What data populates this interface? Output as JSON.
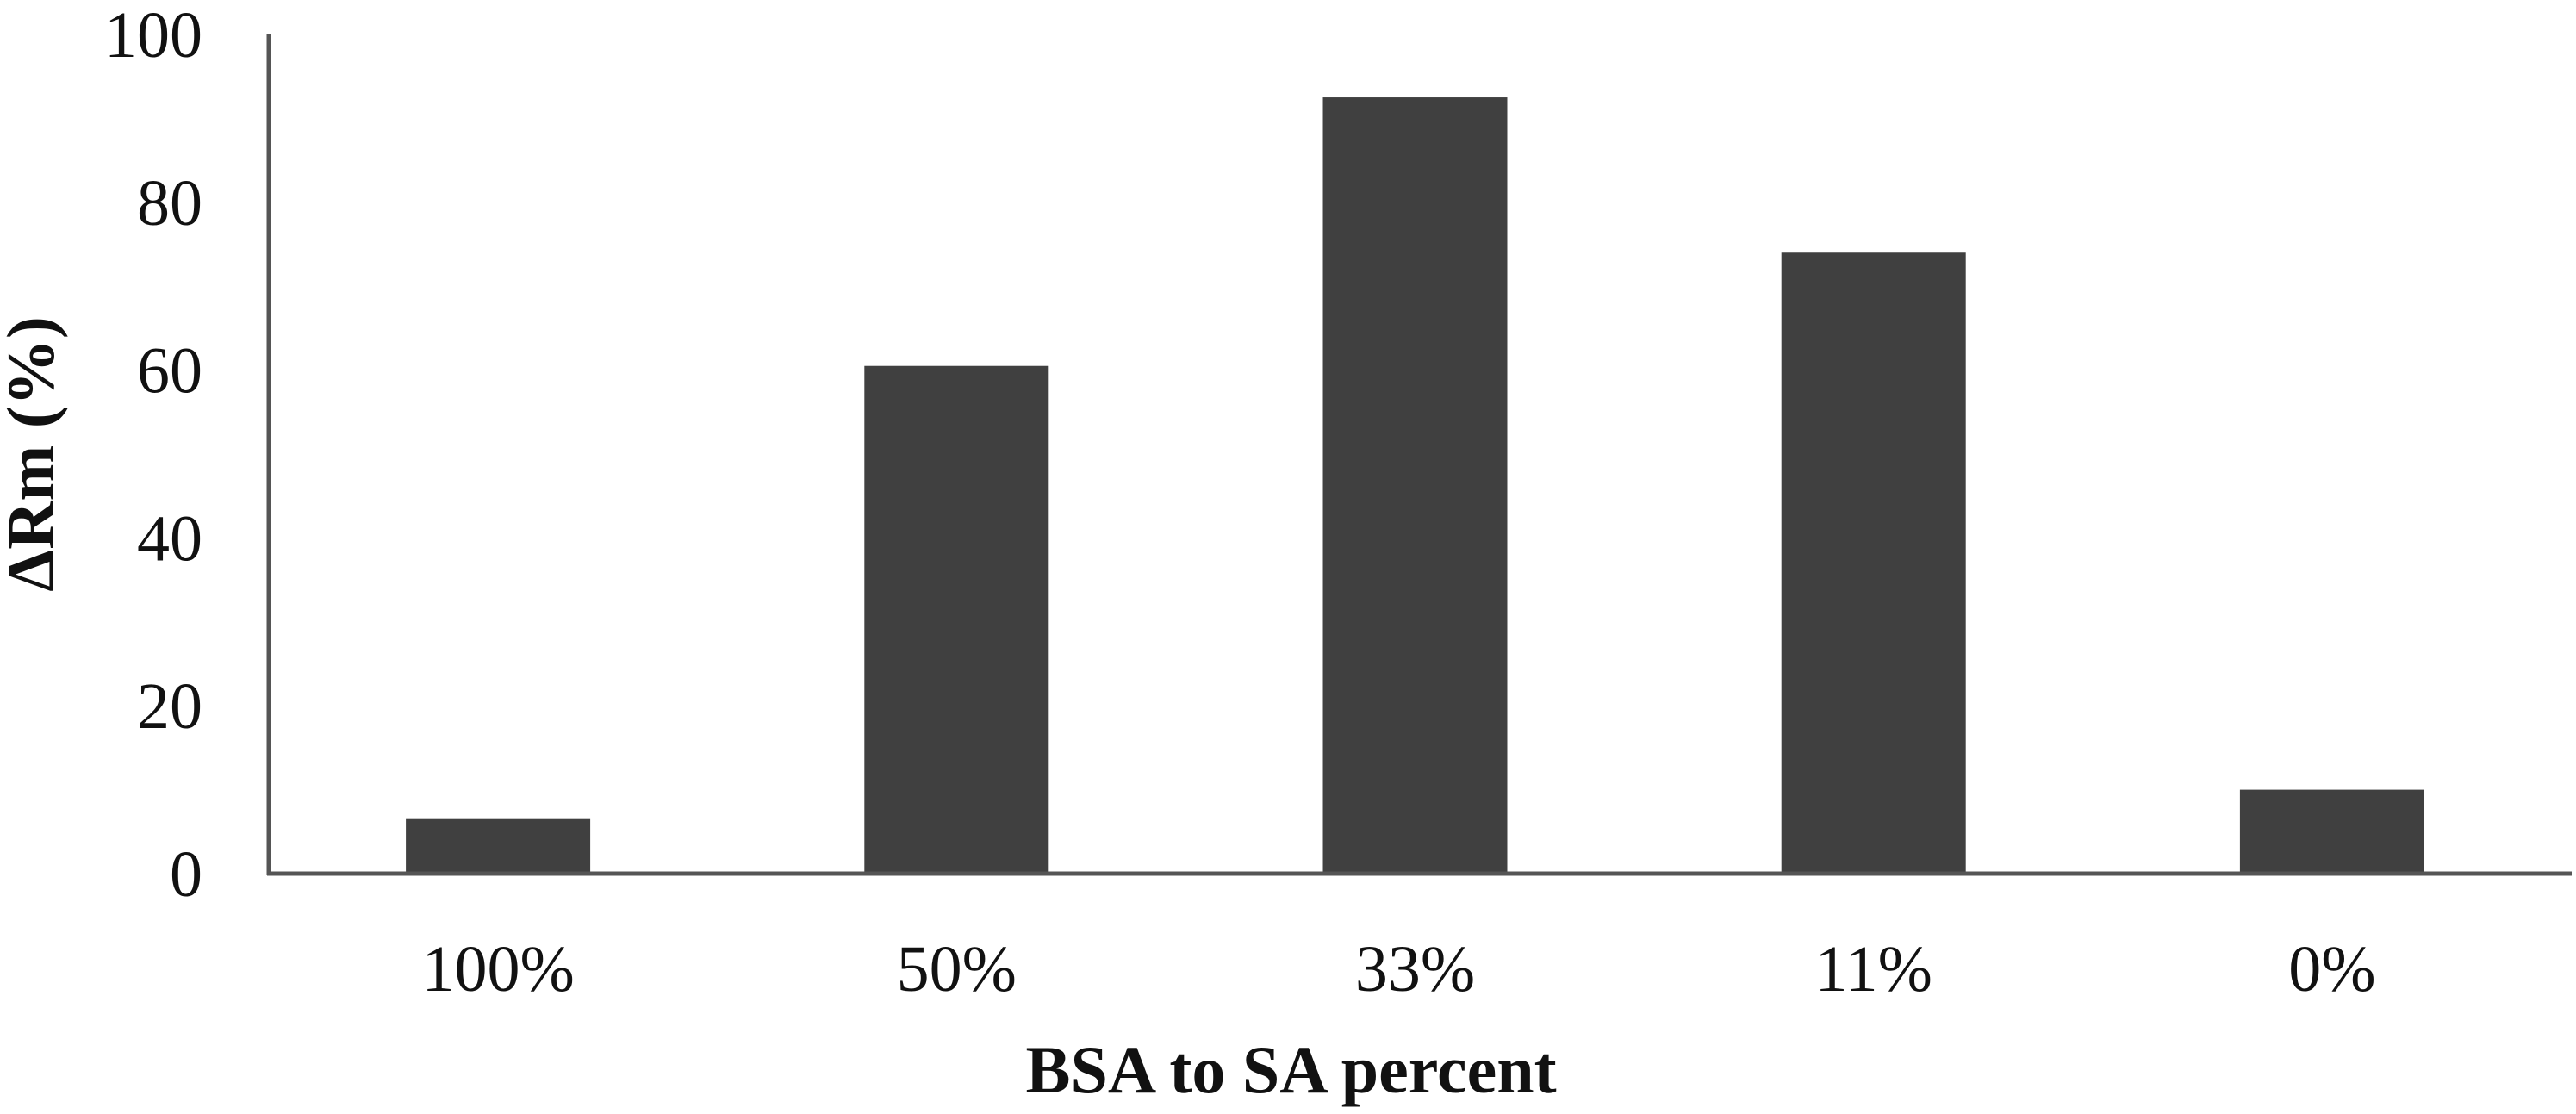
{
  "chart_data": {
    "type": "bar",
    "categories": [
      "100%",
      "50%",
      "33%",
      "11%",
      "0%"
    ],
    "values": [
      6.5,
      60.5,
      92.5,
      74,
      10
    ],
    "title": "",
    "xlabel": "BSA to SA percent",
    "ylabel": "ΔRm (%)",
    "ylim": [
      0,
      100
    ],
    "yticks": [
      "0",
      "20",
      "40",
      "60",
      "80",
      "100"
    ],
    "grid": false,
    "legend": "none",
    "bar_color": "#404040"
  }
}
